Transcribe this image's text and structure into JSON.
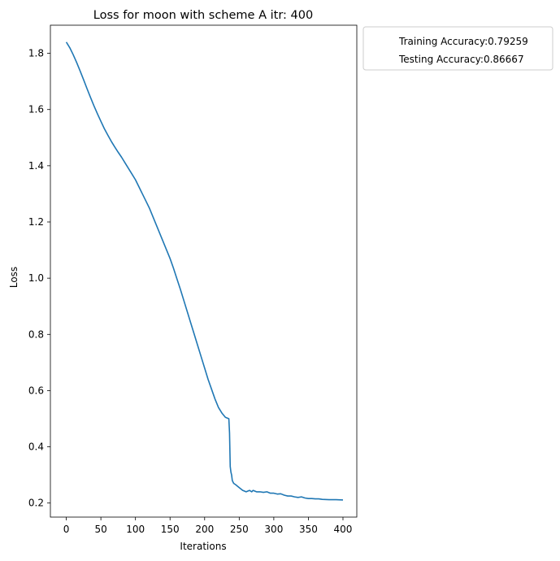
{
  "chart_data": {
    "type": "line",
    "title": "Loss for moon with scheme A itr: 400",
    "xlabel": "Iterations",
    "ylabel": "Loss",
    "xlim": [
      -23,
      420
    ],
    "ylim": [
      0.15,
      1.9
    ],
    "x_ticks": [
      0,
      50,
      100,
      150,
      200,
      250,
      300,
      350,
      400
    ],
    "y_ticks": [
      0.2,
      0.4,
      0.6,
      0.8,
      1.0,
      1.2,
      1.4,
      1.6,
      1.8
    ],
    "x_tick_labels": [
      "0",
      "50",
      "100",
      "150",
      "200",
      "250",
      "300",
      "350",
      "400"
    ],
    "y_tick_labels": [
      "0.2",
      "0.4",
      "0.6",
      "0.8",
      "1.0",
      "1.2",
      "1.4",
      "1.6",
      "1.8"
    ],
    "grid": false,
    "legend": {
      "placement": "outside upper right",
      "entries": [
        "Training Accuracy:0.79259",
        "Testing Accuracy:0.86667"
      ]
    },
    "series": [
      {
        "color": "#1f77b4",
        "x": [
          0,
          5,
          10,
          15,
          20,
          25,
          30,
          35,
          40,
          45,
          50,
          55,
          60,
          65,
          70,
          75,
          80,
          85,
          90,
          95,
          100,
          105,
          108,
          110,
          115,
          120,
          125,
          130,
          135,
          140,
          145,
          150,
          155,
          160,
          165,
          170,
          175,
          180,
          185,
          190,
          195,
          200,
          205,
          210,
          215,
          220,
          225,
          230,
          235,
          236,
          237,
          238,
          239,
          240,
          242,
          245,
          250,
          255,
          260,
          265,
          268,
          270,
          275,
          280,
          285,
          290,
          295,
          300,
          305,
          310,
          315,
          320,
          325,
          330,
          335,
          340,
          345,
          350,
          355,
          360,
          365,
          370,
          380,
          390,
          400
        ],
        "y": [
          1.84,
          1.82,
          1.795,
          1.767,
          1.737,
          1.706,
          1.674,
          1.643,
          1.613,
          1.585,
          1.558,
          1.532,
          1.509,
          1.487,
          1.467,
          1.448,
          1.43,
          1.41,
          1.39,
          1.37,
          1.35,
          1.325,
          1.31,
          1.3,
          1.275,
          1.25,
          1.22,
          1.19,
          1.16,
          1.13,
          1.1,
          1.07,
          1.035,
          0.997,
          0.96,
          0.92,
          0.88,
          0.84,
          0.8,
          0.76,
          0.72,
          0.68,
          0.64,
          0.605,
          0.57,
          0.54,
          0.52,
          0.505,
          0.5,
          0.45,
          0.33,
          0.31,
          0.3,
          0.28,
          0.27,
          0.265,
          0.255,
          0.245,
          0.24,
          0.245,
          0.24,
          0.245,
          0.24,
          0.24,
          0.238,
          0.24,
          0.235,
          0.235,
          0.232,
          0.233,
          0.228,
          0.225,
          0.225,
          0.222,
          0.22,
          0.222,
          0.218,
          0.216,
          0.216,
          0.215,
          0.215,
          0.213,
          0.212,
          0.212,
          0.211
        ]
      }
    ]
  }
}
